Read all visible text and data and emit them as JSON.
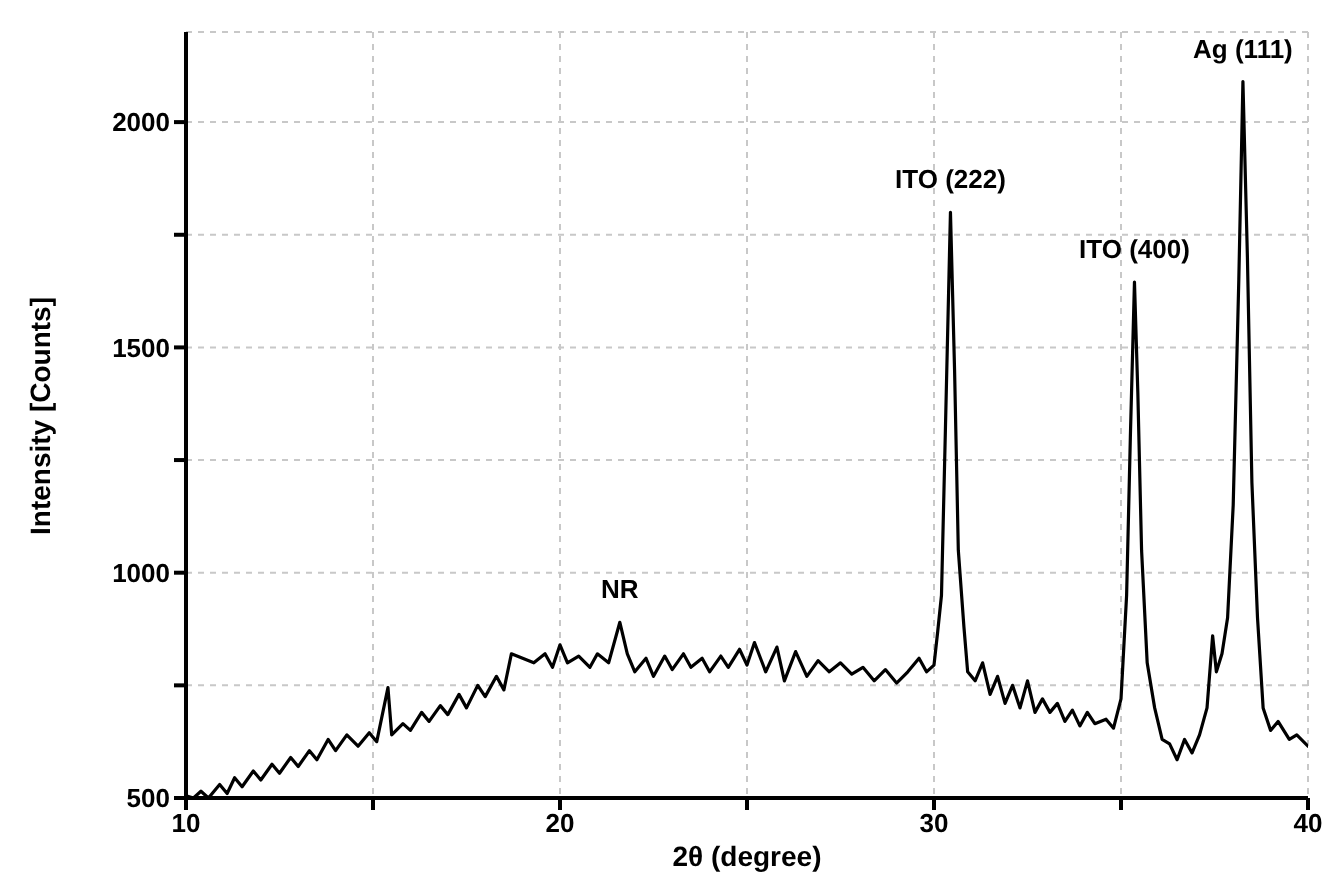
{
  "chart_data": {
    "type": "line",
    "xlabel": "2θ (degree)",
    "ylabel": "Intensity [Counts]",
    "xlim": [
      10,
      40
    ],
    "xticks": [
      10,
      {
        "value": 15,
        "label": null
      },
      20,
      {
        "value": 25,
        "label": null
      },
      30,
      {
        "value": 35,
        "label": null
      },
      40
    ],
    "ylim": [
      500,
      2200
    ],
    "yticks": [
      500,
      {
        "value": 750,
        "label": null
      },
      1000,
      {
        "value": 1250,
        "label": null
      },
      1500,
      {
        "value": 1750,
        "label": null
      },
      2000
    ],
    "grid": true,
    "x": [
      10.0,
      10.2,
      10.4,
      10.6,
      10.9,
      11.1,
      11.3,
      11.5,
      11.8,
      12.0,
      12.3,
      12.5,
      12.8,
      13.0,
      13.3,
      13.5,
      13.8,
      14.0,
      14.3,
      14.6,
      14.9,
      15.1,
      15.4,
      15.5,
      15.8,
      16.0,
      16.3,
      16.5,
      16.8,
      17.0,
      17.3,
      17.5,
      17.8,
      18.0,
      18.3,
      18.5,
      18.7,
      19.0,
      19.3,
      19.6,
      19.8,
      20.0,
      20.2,
      20.5,
      20.8,
      21.0,
      21.3,
      21.6,
      21.8,
      22.0,
      22.3,
      22.5,
      22.8,
      23.0,
      23.3,
      23.5,
      23.8,
      24.0,
      24.3,
      24.5,
      24.8,
      25.0,
      25.2,
      25.5,
      25.8,
      26.0,
      26.3,
      26.6,
      26.9,
      27.2,
      27.5,
      27.8,
      28.1,
      28.4,
      28.7,
      29.0,
      29.3,
      29.6,
      29.8,
      30.0,
      30.1,
      30.2,
      30.3,
      30.44,
      30.55,
      30.65,
      30.8,
      30.9,
      31.1,
      31.3,
      31.5,
      31.7,
      31.9,
      32.1,
      32.3,
      32.5,
      32.7,
      32.9,
      33.1,
      33.3,
      33.5,
      33.7,
      33.9,
      34.1,
      34.3,
      34.6,
      34.8,
      35.0,
      35.15,
      35.25,
      35.36,
      35.45,
      35.55,
      35.7,
      35.9,
      36.1,
      36.3,
      36.5,
      36.7,
      36.9,
      37.1,
      37.3,
      37.45,
      37.55,
      37.7,
      37.85,
      38.0,
      38.15,
      38.26,
      38.38,
      38.5,
      38.65,
      38.8,
      39.0,
      39.2,
      39.5,
      39.7,
      40.0
    ],
    "series": [
      {
        "color": "#000000",
        "values": [
          505,
          500,
          515,
          500,
          530,
          510,
          545,
          525,
          560,
          540,
          575,
          555,
          590,
          570,
          605,
          585,
          630,
          605,
          640,
          615,
          645,
          625,
          745,
          640,
          665,
          650,
          690,
          670,
          705,
          685,
          730,
          700,
          750,
          725,
          770,
          740,
          820,
          810,
          800,
          820,
          790,
          840,
          800,
          815,
          790,
          820,
          800,
          890,
          820,
          780,
          810,
          770,
          815,
          785,
          820,
          790,
          810,
          780,
          815,
          790,
          830,
          795,
          845,
          780,
          835,
          760,
          825,
          770,
          805,
          780,
          800,
          775,
          790,
          760,
          785,
          755,
          780,
          810,
          780,
          795,
          870,
          950,
          1300,
          1800,
          1450,
          1050,
          880,
          780,
          760,
          800,
          730,
          770,
          710,
          750,
          700,
          760,
          690,
          720,
          690,
          710,
          670,
          695,
          660,
          690,
          665,
          675,
          655,
          720,
          950,
          1300,
          1645,
          1400,
          1050,
          800,
          700,
          630,
          620,
          585,
          630,
          600,
          640,
          700,
          860,
          780,
          820,
          900,
          1150,
          1650,
          2090,
          1700,
          1200,
          900,
          700,
          650,
          670,
          630,
          640,
          615
        ]
      }
    ],
    "annotations": [
      {
        "text": "NR",
        "x": 21.6,
        "y": 890
      },
      {
        "text": "ITO (222)",
        "x": 30.44,
        "y": 1800
      },
      {
        "text": "ITO (400)",
        "x": 35.36,
        "y": 1645
      },
      {
        "text": "Ag (111)",
        "x": 38.26,
        "y": 2090
      }
    ]
  }
}
